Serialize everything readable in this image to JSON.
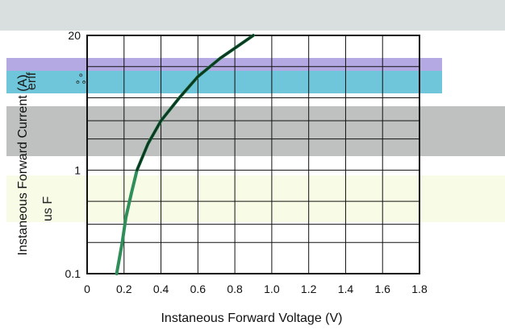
{
  "colors": {
    "top_band": "#d8dfde",
    "lavender_band": "#b4a9e3",
    "cyan_band": "#6fc5d9",
    "gray_band": "#bfc1c1",
    "cream_band": "#f8fbe6",
    "curve_dark": "#0b3a21",
    "curve_light": "#2f8e59",
    "grid": "#111111"
  },
  "overlay_texts": [
    "erif",
    "ஃ",
    "us F"
  ],
  "chart_data": {
    "type": "line",
    "xlabel": "Instaneous Forward Voltage (V)",
    "ylabel": "Instaneous Forward Current (A)",
    "xlim": [
      0,
      1.8
    ],
    "ylim": [
      0.1,
      20
    ],
    "yscale": "log",
    "grid": true,
    "x_ticks": [
      {
        "value": 0,
        "label": "0"
      },
      {
        "value": 0.2,
        "label": "0.2"
      },
      {
        "value": 0.4,
        "label": "0.4"
      },
      {
        "value": 0.6,
        "label": "0.6"
      },
      {
        "value": 0.8,
        "label": "0.8"
      },
      {
        "value": 1.0,
        "label": "1.0"
      },
      {
        "value": 1.2,
        "label": "1.2"
      },
      {
        "value": 1.4,
        "label": "1.4"
      },
      {
        "value": 1.6,
        "label": "1.6"
      },
      {
        "value": 1.8,
        "label": "1.8"
      }
    ],
    "y_ticks": [
      {
        "value": 0.1,
        "label": "0.1"
      },
      {
        "value": 1,
        "label": "1"
      },
      {
        "value": 20,
        "label": "20"
      }
    ],
    "series": [
      {
        "points": [
          {
            "x": 0.16,
            "y": 0.1
          },
          {
            "x": 0.19,
            "y": 0.2
          },
          {
            "x": 0.21,
            "y": 0.35
          },
          {
            "x": 0.24,
            "y": 0.6
          },
          {
            "x": 0.27,
            "y": 1.0
          },
          {
            "x": 0.33,
            "y": 1.8
          },
          {
            "x": 0.4,
            "y": 3.0
          },
          {
            "x": 0.5,
            "y": 5.0
          },
          {
            "x": 0.6,
            "y": 8.0
          },
          {
            "x": 0.72,
            "y": 12.0
          },
          {
            "x": 0.9,
            "y": 20.0
          }
        ]
      }
    ]
  }
}
